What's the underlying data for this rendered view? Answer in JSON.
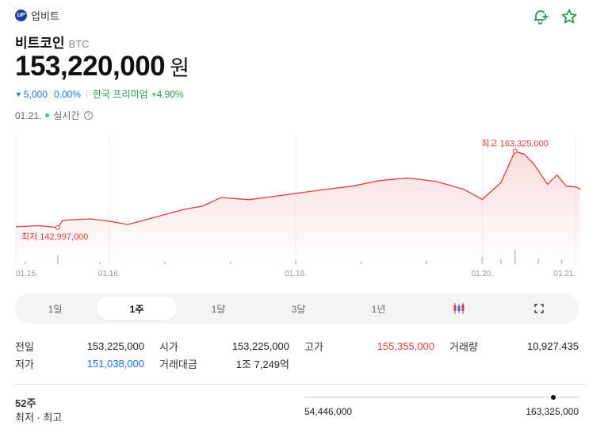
{
  "header": {
    "exchange_logo_text": "UP",
    "exchange_name": "업비트",
    "coin_name": "비트코인",
    "coin_ticker": "BTC",
    "price": "153,220,000",
    "price_unit": "원",
    "change_arrow": "▼",
    "change_abs": "5,000",
    "change_pct": "0.00%",
    "premium_label": "한국 프리미엄",
    "premium_value": "+4.90%",
    "date": "01.21.",
    "live_label": "실시간",
    "help_glyph": "?"
  },
  "icons": {
    "alarm": "bell-plus-icon",
    "favorite": "star-icon"
  },
  "colors": {
    "up": "#e03c3c",
    "down": "#1a73e8",
    "premium": "#1e9e4a",
    "line": "#e03c3c"
  },
  "periods": [
    {
      "label": "1일",
      "active": false
    },
    {
      "label": "1주",
      "active": true
    },
    {
      "label": "1달",
      "active": false
    },
    {
      "label": "3달",
      "active": false
    },
    {
      "label": "1년",
      "active": false
    },
    {
      "label": "",
      "icon": "candlestick-icon",
      "active": false
    },
    {
      "label": "",
      "icon": "fullscreen-icon",
      "active": false
    }
  ],
  "stats": {
    "prev_label": "전일",
    "prev_value": "153,225,000",
    "open_label": "시가",
    "open_value": "153,225,000",
    "high_label": "고가",
    "high_value": "155,355,000",
    "volume_label": "거래량",
    "volume_value": "10,927.435",
    "low_label": "저가",
    "low_value": "151,038,000",
    "amount_label": "거래대금",
    "amount_value": "1조 7,249억"
  },
  "range52": {
    "label_line1": "52주",
    "label_line2": "최저 · 최고",
    "min": "54,446,000",
    "max": "163,325,000",
    "current_value": 153220000,
    "min_value": 54446000,
    "max_value": 163325000
  },
  "chart_data": {
    "type": "area",
    "x_tick_labels": [
      "01.15.",
      "01.16.",
      "01.18.",
      "01.20.",
      "01.21."
    ],
    "x_tick_positions_days": [
      0,
      1,
      3,
      5,
      6
    ],
    "x_range_days": [
      0,
      6.05
    ],
    "ylim": [
      136000000,
      166000000
    ],
    "series": [
      {
        "x": [
          0,
          0.25,
          0.45,
          0.5,
          0.55,
          0.8,
          1.0,
          1.2,
          1.5,
          1.8,
          2.0,
          2.2,
          2.5,
          2.8,
          3.0,
          3.3,
          3.6,
          3.9,
          4.2,
          4.5,
          4.8,
          5.0,
          5.2,
          5.35,
          5.45,
          5.55,
          5.7,
          5.8,
          5.9,
          6.0,
          6.05
        ],
        "y": [
          143200000,
          143500000,
          142997000,
          144800000,
          145000000,
          145300000,
          144700000,
          143800000,
          145800000,
          147800000,
          148700000,
          151000000,
          150400000,
          151400000,
          152100000,
          153100000,
          154000000,
          155500000,
          156200000,
          155300000,
          153200000,
          150500000,
          155000000,
          163325000,
          162500000,
          160000000,
          154500000,
          157000000,
          154000000,
          153800000,
          153220000
        ]
      }
    ],
    "annotations": [
      {
        "label": "최고 163,325,000",
        "x": 5.35,
        "y": 163325000,
        "kind": "high"
      },
      {
        "label": "최저 142,997,000",
        "x": 0.45,
        "y": 142997000,
        "kind": "low"
      }
    ],
    "volume": {
      "x": [
        0.1,
        0.45,
        0.9,
        1.6,
        2.3,
        3.0,
        3.7,
        4.4,
        5.0,
        5.2,
        5.35,
        5.6,
        5.85
      ],
      "values": [
        0.15,
        0.55,
        0.12,
        0.18,
        0.14,
        0.22,
        0.16,
        0.2,
        0.45,
        0.3,
        0.9,
        0.35,
        0.3
      ]
    },
    "grid": true
  }
}
